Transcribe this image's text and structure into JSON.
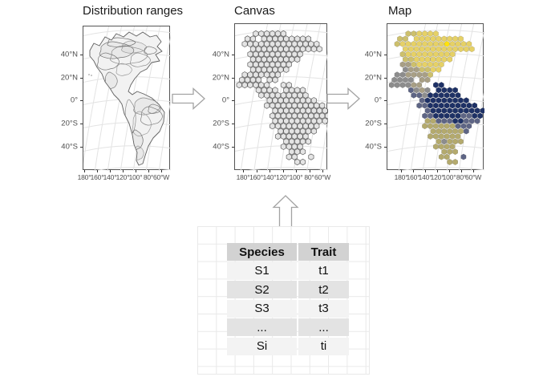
{
  "panels": [
    {
      "id": "ranges",
      "title": "Distribution ranges"
    },
    {
      "id": "canvas",
      "title": "Canvas"
    },
    {
      "id": "map",
      "title": "Map"
    }
  ],
  "axes": {
    "y_tick_labels": [
      "40°N",
      "20°N",
      "0°",
      "20°S",
      "40°S"
    ],
    "x_tick_labels": [
      "180°",
      "160°",
      "140°",
      "120°",
      "100°",
      "80°",
      "60°W"
    ]
  },
  "hex_map": {
    "rows": [
      "...ddyyyy........",
      ".dd.yyyyyyyyy....",
      ".dyyyyyyyyYyyyy..",
      "..yyyyyyyyyyyyy..",
      "..dyyyyyyyyy.....",
      "..ddyyyyyyy......",
      "..ttdyyyyy.......",
      "..gttddyy........",
      ".ggttttd.........",
      "gggg.tt..........",
      "ggggtt..nn.......",
      "...sgtg.nnnn.....",
      "....ssgnnnnnn....",
      ".....snnnnnnnn...",
      ".....ssnnnnnnnnn.",
      "......snnnnnnnnnn",
      "......ssnnnnnssnn",
      "......kksssnnsss.",
      "......kkkkkksss..",
      ".......kkkkkks...",
      ".......kkkkkk....",
      "........kgkkk....",
      "........kkkk.....",
      ".........kkk.....",
      ".........kk..s...",
      "..........kk....."
    ],
    "palette": {
      "d": "#cdc06c",
      "y": "#e6d166",
      "Y": "#ffe10e",
      "t": "#a89f85",
      "g": "#8d8d8d",
      "s": "#5e6585",
      "n": "#1e3166",
      "k": "#b4aa6d"
    },
    "canvas_fill": "#e4e4e4",
    "canvas_stroke": "#5f5f5f"
  },
  "table": {
    "headers": [
      "Species",
      "Trait"
    ],
    "rows": [
      [
        "S1",
        "t1"
      ],
      [
        "S2",
        "t2"
      ],
      [
        "S3",
        "t3"
      ],
      [
        "...",
        "..."
      ],
      [
        "Si",
        "ti"
      ]
    ]
  },
  "colors": {
    "panel_border": "#555555",
    "graticule": "#e3e3e3",
    "axis_text": "#4d4d4d",
    "arrow_stroke": "#a3a3a3",
    "arrow_fill": "#ffffff",
    "range_fill": "#f2f2f2",
    "range_stroke": "#5a5a5a"
  }
}
